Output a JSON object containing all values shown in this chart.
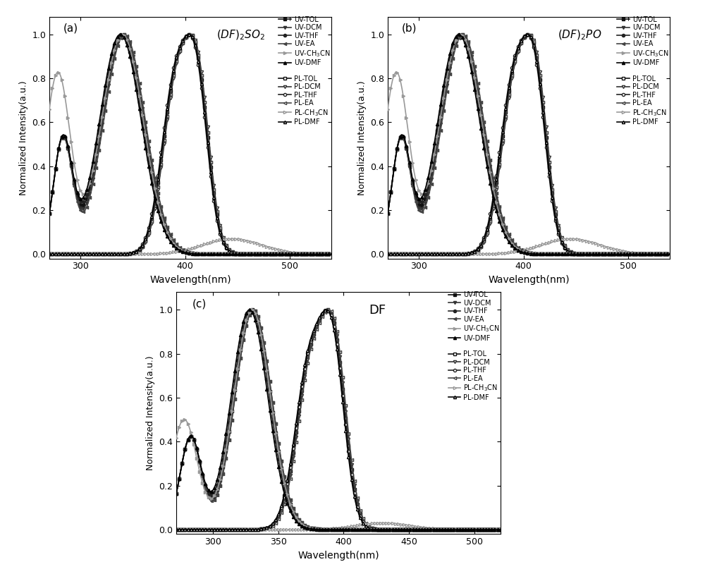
{
  "panels_ab": {
    "xlim": [
      270,
      540
    ],
    "ylim": [
      -0.02,
      1.08
    ],
    "xticks": [
      300,
      400,
      500
    ],
    "yticks": [
      0.0,
      0.2,
      0.4,
      0.6,
      0.8,
      1.0
    ],
    "xlabel": "Wavelength(nm)",
    "ylabel": "Normalized Intensity(a.u.)"
  },
  "panel_c": {
    "xlim": [
      272,
      520
    ],
    "ylim": [
      -0.02,
      1.08
    ],
    "xticks": [
      300,
      350,
      400,
      450,
      500
    ],
    "yticks": [
      0.0,
      0.2,
      0.4,
      0.6,
      0.8,
      1.0
    ],
    "xlabel": "Wavelength(nm)",
    "ylabel": "Normalized Intensity(a.u.)"
  },
  "uv_labels": [
    "UV-TOL",
    "UV-DCM",
    "UV-THF",
    "UV-EA",
    "UV-CH$_3$CN",
    "UV-DMF"
  ],
  "pl_labels": [
    "PL-TOL",
    "PL-DCM",
    "PL-THF",
    "PL-EA",
    "PL-CH$_3$CN",
    "PL-DMF"
  ],
  "uv_markers_filled": [
    "s",
    "v",
    "o",
    "<",
    ">",
    "^"
  ],
  "pl_markers_open": [
    "s",
    "v",
    "o",
    "<",
    ">",
    "^"
  ],
  "colors_dark": [
    "#111111",
    "#333333",
    "#222222",
    "#444444",
    "#888888",
    "#000000"
  ],
  "color_ch3cn": "#999999",
  "marker_size": 3,
  "lw": 1.2
}
